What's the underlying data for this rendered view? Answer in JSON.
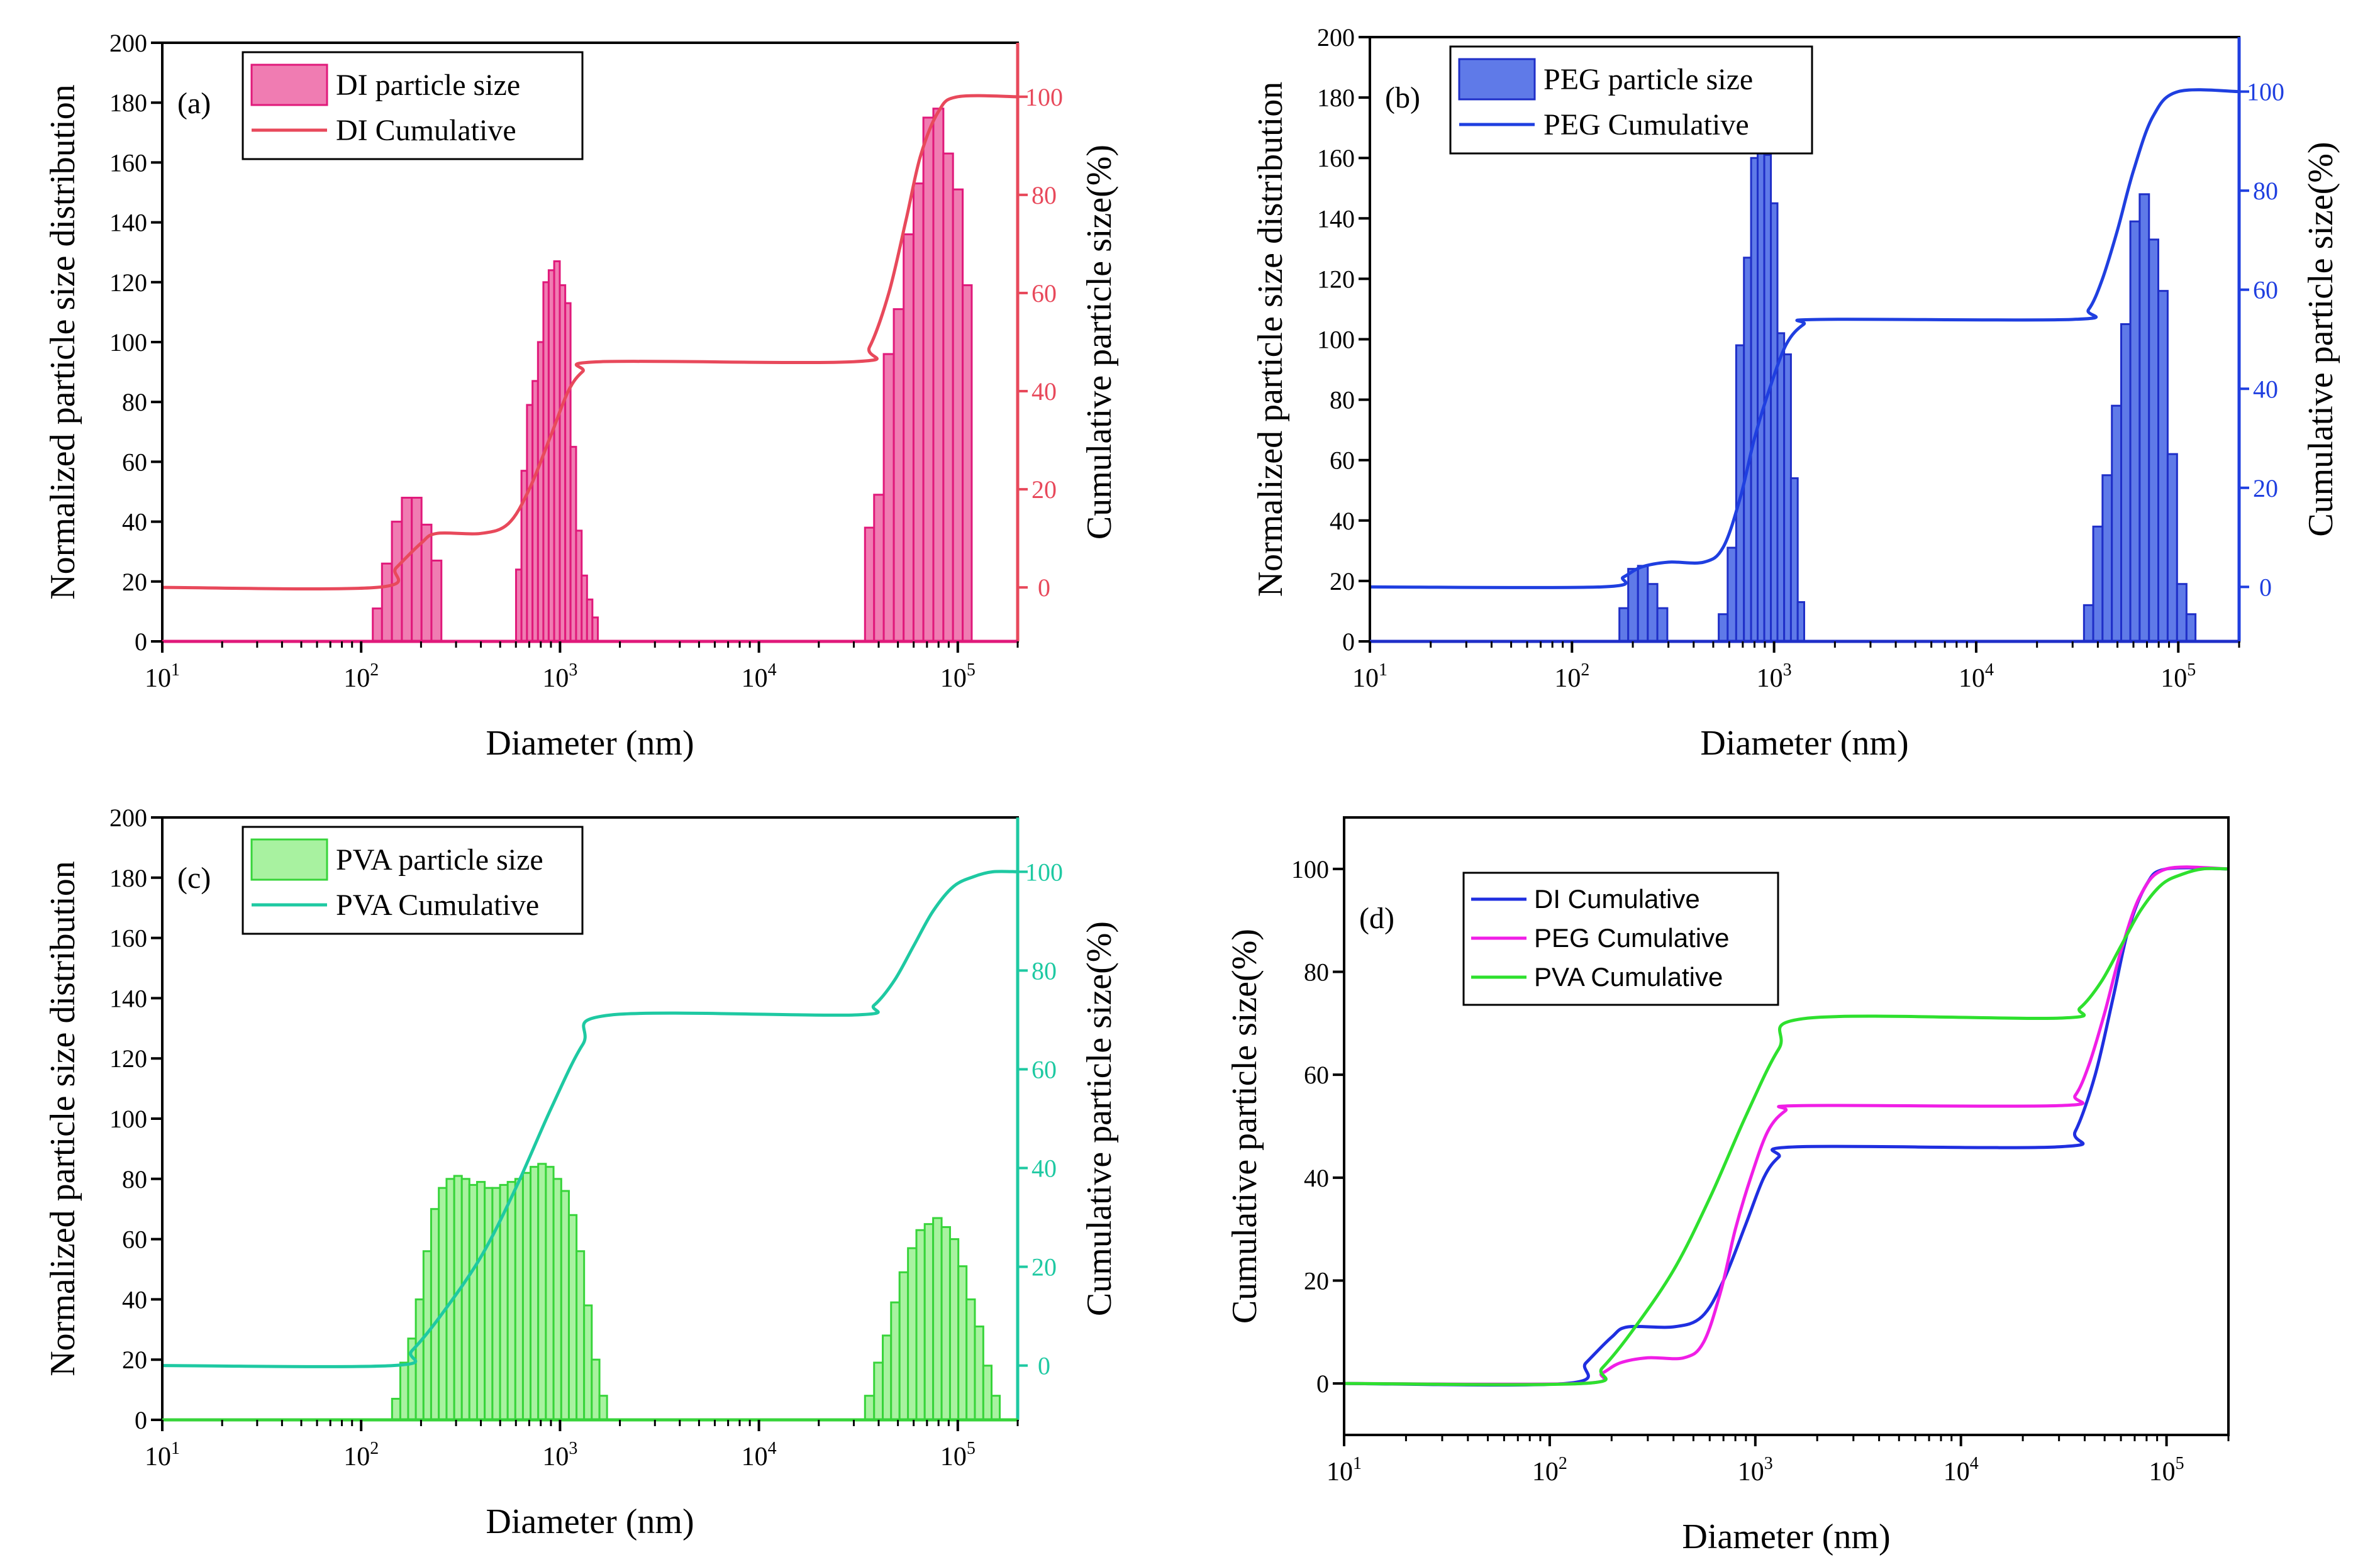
{
  "figure": {
    "panels": [
      "a",
      "b",
      "c",
      "d"
    ]
  },
  "chart_data": [
    {
      "id": "a",
      "type": "bar",
      "panel_label": "(a)",
      "title": "",
      "xlabel": "Diameter (nm)",
      "ylabel": "Normalized particle size distribution",
      "y2label": "Cumulative particle size(%)",
      "xscale": "log",
      "xlim": [
        10,
        200000
      ],
      "ylim": [
        0,
        200
      ],
      "y2lim": [
        -11,
        111
      ],
      "x_ticks": [
        10,
        100,
        1000,
        10000,
        100000
      ],
      "x_tick_labels": [
        {
          "base": "10",
          "exp": "1"
        },
        {
          "base": "10",
          "exp": "2"
        },
        {
          "base": "10",
          "exp": "3"
        },
        {
          "base": "10",
          "exp": "4"
        },
        {
          "base": "10",
          "exp": "5"
        }
      ],
      "y_ticks": [
        0,
        20,
        40,
        60,
        80,
        100,
        120,
        140,
        160,
        180,
        200
      ],
      "y2_ticks": [
        0,
        20,
        40,
        60,
        80,
        100
      ],
      "y2_color": "#e8495b",
      "legend": [
        "DI particle size",
        "DI Cumulative"
      ],
      "legend_position": "top-left",
      "bar_fill": "#f07cb2",
      "bar_stroke": "#e0197a",
      "bar_legend_fill": "#f07cb2",
      "bar_series": {
        "name": "DI particle size",
        "x": [
          120,
          135,
          151,
          170,
          190,
          213,
          239,
          620,
          660,
          705,
          750,
          800,
          850,
          905,
          965,
          1030,
          1095,
          1165,
          1245,
          1325,
          1410,
          1500,
          1600,
          1700,
          36000,
          40000,
          45000,
          50500,
          56500,
          63500,
          71000,
          80000,
          89500,
          100000,
          112000
        ],
        "values": [
          11,
          26,
          40,
          48,
          48,
          39,
          27,
          24,
          57,
          79,
          87,
          100,
          120,
          124,
          127,
          119,
          113,
          65,
          37,
          22,
          14,
          8,
          0,
          0,
          38,
          49,
          96,
          111,
          136,
          153,
          175,
          178,
          163,
          151,
          119
        ]
      },
      "cumulative": {
        "name": "DI Cumulative",
        "color": "#e8495b",
        "x": [
          10,
          120,
          150,
          200,
          240,
          400,
          550,
          700,
          900,
          1100,
          1300,
          1600,
          30000,
          36000,
          45000,
          55000,
          65000,
          80000,
          100000,
          200000
        ],
        "y": [
          0,
          0,
          4,
          9,
          11,
          11,
          13,
          20,
          31,
          40,
          44,
          46,
          46,
          49,
          60,
          75,
          88,
          97,
          100,
          100
        ]
      }
    },
    {
      "id": "b",
      "type": "bar",
      "panel_label": "(b)",
      "title": "",
      "xlabel": "Diameter (nm)",
      "ylabel": "Normalized particle size distribution",
      "y2label": "Cumulative particle size(%)",
      "xscale": "log",
      "xlim": [
        10,
        200000
      ],
      "ylim": [
        0,
        200
      ],
      "y2lim": [
        -11,
        111
      ],
      "x_ticks": [
        10,
        100,
        1000,
        10000,
        100000
      ],
      "x_tick_labels": [
        {
          "base": "10",
          "exp": "1"
        },
        {
          "base": "10",
          "exp": "2"
        },
        {
          "base": "10",
          "exp": "3"
        },
        {
          "base": "10",
          "exp": "4"
        },
        {
          "base": "10",
          "exp": "5"
        }
      ],
      "y_ticks": [
        0,
        20,
        40,
        60,
        80,
        100,
        120,
        140,
        160,
        180,
        200
      ],
      "y2_ticks": [
        0,
        20,
        40,
        60,
        80,
        100
      ],
      "y2_color": "#1f3fe0",
      "legend": [
        "PEG particle size",
        "PEG Cumulative"
      ],
      "legend_position": "top-left",
      "bar_fill": "#5f7ae8",
      "bar_stroke": "#1f2fc8",
      "bar_legend_fill": "#5f7ae8",
      "bar_series": {
        "name": "PEG particle size",
        "x": [
          180,
          200,
          225,
          250,
          280,
          560,
          620,
          680,
          740,
          800,
          860,
          930,
          1000,
          1080,
          1165,
          1260,
          1360,
          1460,
          36000,
          40000,
          44500,
          49500,
          55000,
          61000,
          68000,
          75500,
          84000,
          93500,
          104000,
          116000
        ],
        "values": [
          11,
          24,
          25,
          19,
          11,
          9,
          31,
          98,
          127,
          160,
          169,
          161,
          145,
          102,
          95,
          54,
          13,
          0,
          12,
          38,
          55,
          78,
          105,
          139,
          148,
          133,
          116,
          62,
          19,
          9
        ]
      },
      "cumulative": {
        "name": "PEG Cumulative",
        "color": "#1f3fe0",
        "x": [
          10,
          140,
          180,
          220,
          300,
          450,
          560,
          680,
          800,
          950,
          1150,
          1400,
          1700,
          30000,
          36000,
          42000,
          50000,
          60000,
          75000,
          100000,
          200000
        ],
        "y": [
          0,
          0,
          2,
          4,
          5,
          5,
          8,
          18,
          30,
          40,
          49,
          53,
          54,
          54,
          56,
          62,
          72,
          84,
          95,
          100,
          100
        ]
      }
    },
    {
      "id": "c",
      "type": "bar",
      "panel_label": "(c)",
      "title": "",
      "xlabel": "Diameter (nm)",
      "ylabel": "Normalized particle size distribution",
      "y2label": "Cumulative particle size(%)",
      "xscale": "log",
      "xlim": [
        10,
        200000
      ],
      "ylim": [
        0,
        200
      ],
      "y2lim": [
        -11,
        111
      ],
      "x_ticks": [
        10,
        100,
        1000,
        10000,
        100000
      ],
      "x_tick_labels": [
        {
          "base": "10",
          "exp": "1"
        },
        {
          "base": "10",
          "exp": "2"
        },
        {
          "base": "10",
          "exp": "3"
        },
        {
          "base": "10",
          "exp": "4"
        },
        {
          "base": "10",
          "exp": "5"
        }
      ],
      "y_ticks": [
        0,
        20,
        40,
        60,
        80,
        100,
        120,
        140,
        160,
        180,
        200
      ],
      "y2_ticks": [
        0,
        20,
        40,
        60,
        80,
        100
      ],
      "y2_color": "#1ec9a2",
      "legend": [
        "PVA particle size",
        "PVA Cumulative"
      ],
      "legend_position": "top-left",
      "bar_fill": "#a8f2a0",
      "bar_stroke": "#37d43a",
      "bar_legend_fill": "#a8f2a0",
      "bar_series": {
        "name": "PVA particle size",
        "x": [
          150,
          165,
          180,
          197,
          215,
          235,
          257,
          281,
          307,
          335,
          366,
          400,
          437,
          478,
          522,
          570,
          623,
          680,
          743,
          812,
          887,
          970,
          1060,
          1158,
          1265,
          1380,
          1510,
          1650,
          1800,
          36000,
          40000,
          44000,
          48500,
          53500,
          59000,
          65000,
          71500,
          79000,
          87000,
          96000,
          105500,
          116000,
          128000,
          141000,
          155000
        ],
        "values": [
          7,
          19,
          27,
          40,
          56,
          70,
          77,
          80,
          81,
          80,
          78,
          79,
          77,
          77,
          78,
          79,
          80,
          82,
          84,
          85,
          84,
          80,
          76,
          68,
          56,
          38,
          20,
          8,
          0,
          8,
          19,
          28,
          39,
          49,
          57,
          63,
          65,
          67,
          64,
          60,
          51,
          40,
          31,
          18,
          8
        ]
      },
      "cumulative": {
        "name": "PVA Cumulative",
        "color": "#1ec9a2",
        "x": [
          10,
          145,
          180,
          250,
          400,
          600,
          900,
          1300,
          1800,
          30000,
          38000,
          48000,
          60000,
          75000,
          95000,
          120000,
          150000,
          200000
        ],
        "y": [
          0,
          0,
          3,
          10,
          22,
          36,
          52,
          65,
          71,
          71,
          73,
          78,
          85,
          92,
          97,
          99,
          100,
          100
        ]
      }
    },
    {
      "id": "d",
      "type": "line",
      "panel_label": "(d)",
      "title": "",
      "xlabel": "Diameter (nm)",
      "ylabel": "Cumulative particle size(%)",
      "xscale": "log",
      "xlim": [
        10,
        200000
      ],
      "ylim": [
        -10,
        110
      ],
      "x_ticks": [
        10,
        100,
        1000,
        10000,
        100000
      ],
      "x_tick_labels": [
        {
          "base": "10",
          "exp": "1"
        },
        {
          "base": "10",
          "exp": "2"
        },
        {
          "base": "10",
          "exp": "3"
        },
        {
          "base": "10",
          "exp": "4"
        },
        {
          "base": "10",
          "exp": "5"
        }
      ],
      "y_ticks": [
        0,
        20,
        40,
        60,
        80,
        100
      ],
      "legend": [
        "DI Cumulative",
        "PEG Cumulative",
        "PVA Cumulative"
      ],
      "legend_position": "top-left",
      "series": [
        {
          "name": "DI Cumulative",
          "color": "#1f2fe0",
          "x": [
            10,
            120,
            150,
            200,
            240,
            400,
            550,
            700,
            900,
            1100,
            1300,
            1600,
            30000,
            36000,
            45000,
            55000,
            65000,
            80000,
            100000,
            200000
          ],
          "y": [
            0,
            0,
            4,
            9,
            11,
            11,
            13,
            20,
            31,
            40,
            44,
            46,
            46,
            49,
            60,
            75,
            88,
            97,
            100,
            100
          ]
        },
        {
          "name": "PEG Cumulative",
          "color": "#f01ee6",
          "x": [
            10,
            140,
            180,
            220,
            300,
            450,
            560,
            680,
            800,
            950,
            1150,
            1400,
            1700,
            30000,
            36000,
            42000,
            50000,
            60000,
            75000,
            100000,
            200000
          ],
          "y": [
            0,
            0,
            2,
            4,
            5,
            5,
            8,
            18,
            30,
            40,
            49,
            53,
            54,
            54,
            56,
            62,
            72,
            84,
            95,
            100,
            100
          ]
        },
        {
          "name": "PVA Cumulative",
          "color": "#2ee02e",
          "x": [
            10,
            145,
            180,
            250,
            400,
            600,
            900,
            1300,
            1800,
            30000,
            38000,
            48000,
            60000,
            75000,
            95000,
            120000,
            150000,
            200000
          ],
          "y": [
            0,
            0,
            3,
            10,
            22,
            36,
            52,
            65,
            71,
            71,
            73,
            78,
            85,
            92,
            97,
            99,
            100,
            100
          ]
        }
      ]
    }
  ]
}
